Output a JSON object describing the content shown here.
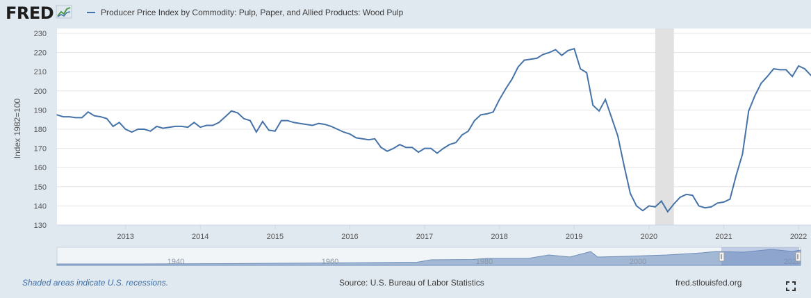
{
  "logo": {
    "text": "FRED",
    "icon": "trend-line-icon"
  },
  "footer": {
    "recession_note": "Shaded areas indicate U.S. recessions.",
    "source": "Source: U.S. Bureau of Labor Statistics",
    "site": "fred.stlouisfed.org",
    "fullscreen_icon": "fullscreen-icon"
  },
  "colors": {
    "series": "#4572a7",
    "recession": "#e1e1e1",
    "background": "#e1e9f0",
    "navigator_fill": "#a3b8d5"
  },
  "navigator": {
    "labels": [
      "1940",
      "1960",
      "1980",
      "2000",
      "2020"
    ]
  },
  "chart_data": {
    "type": "line",
    "title": "",
    "ylabel": "Index 1982=100",
    "xlabel": "",
    "ylim": [
      130,
      230
    ],
    "yticks": [
      130,
      140,
      150,
      160,
      170,
      180,
      190,
      200,
      210,
      220,
      230
    ],
    "xticks": [
      "2013",
      "2014",
      "2015",
      "2016",
      "2017",
      "2018",
      "2019",
      "2020",
      "2021",
      "2022"
    ],
    "grid": "horizontal",
    "recessions": [
      {
        "start": "2020-02",
        "end": "2020-04"
      }
    ],
    "series": [
      {
        "name": "Producer Price Index by Commodity: Pulp, Paper, and Allied Products: Wood Pulp",
        "start": "2012-02",
        "frequency": "monthly",
        "values": [
          187.5,
          186.5,
          186.5,
          186.0,
          186.0,
          189.0,
          187.0,
          186.5,
          185.5,
          181.5,
          183.5,
          180.0,
          178.5,
          180.0,
          180.0,
          179.0,
          181.5,
          180.5,
          181.0,
          181.5,
          181.5,
          181.0,
          183.5,
          181.0,
          182.0,
          182.0,
          183.5,
          186.5,
          189.5,
          188.5,
          185.5,
          184.5,
          178.5,
          184.0,
          179.5,
          179.0,
          184.5,
          184.5,
          183.5,
          183.0,
          182.5,
          182.0,
          183.0,
          182.5,
          181.5,
          180.0,
          178.5,
          177.5,
          175.5,
          175.0,
          174.5,
          175.0,
          170.5,
          168.5,
          170.0,
          172.0,
          170.5,
          170.5,
          168.0,
          170.0,
          170.0,
          167.5,
          170.0,
          172.0,
          173.0,
          177.0,
          179.0,
          184.5,
          187.5,
          188.0,
          189.0,
          195.5,
          201.0,
          206.0,
          212.5,
          216.0,
          216.5,
          217.0,
          219.0,
          220.0,
          221.5,
          218.5,
          221.0,
          222.0,
          211.5,
          209.5,
          192.5,
          189.5,
          195.5,
          186.0,
          176.5,
          161.0,
          146.5,
          140.0,
          137.5,
          140.0,
          139.5,
          142.5,
          137.0,
          141.0,
          144.5,
          146.0,
          145.5,
          140.0,
          139.0,
          139.5,
          141.5,
          142.0,
          143.5,
          156.0,
          167.0,
          189.5,
          197.5,
          204.0,
          207.5,
          211.5,
          211.0,
          211.0,
          207.5,
          213.0,
          211.5,
          208.0
        ]
      }
    ]
  }
}
